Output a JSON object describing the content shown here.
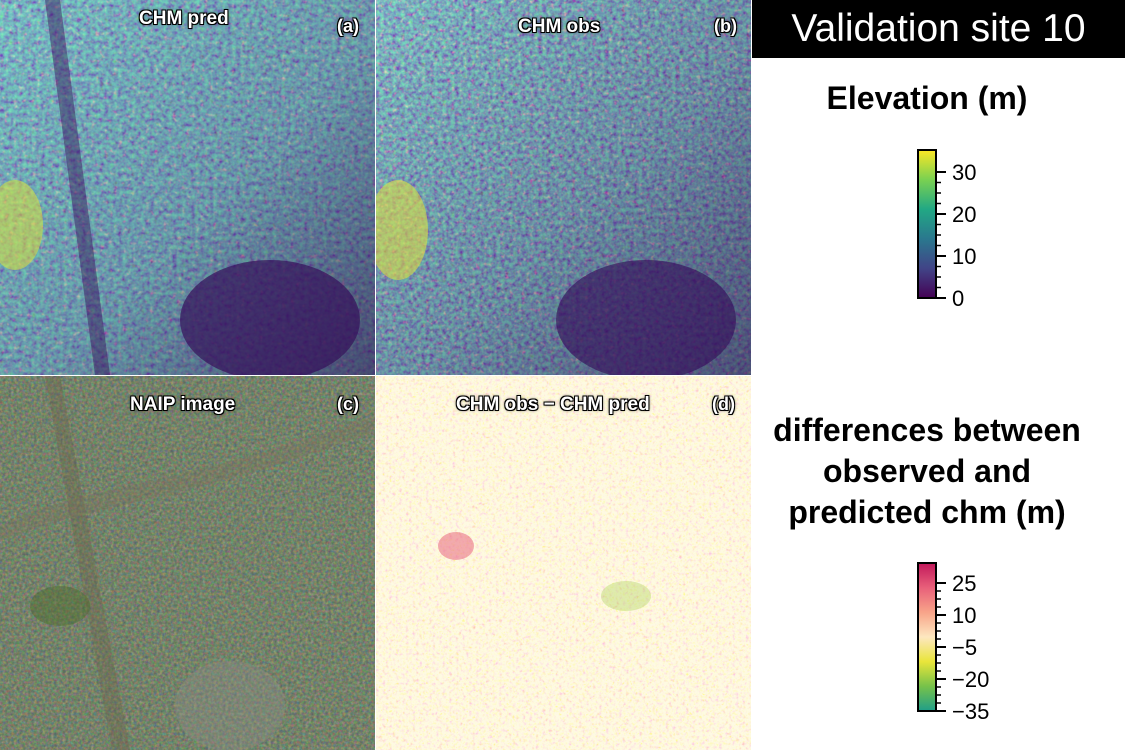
{
  "site_title": "Validation site  10",
  "panels": [
    {
      "id": "a",
      "title": "CHM pred",
      "letter": "(a)"
    },
    {
      "id": "b",
      "title": "CHM obs",
      "letter": "(b)"
    },
    {
      "id": "c",
      "title": "NAIP image",
      "letter": "(c)"
    },
    {
      "id": "d",
      "title": "CHM obs − CHM pred",
      "letter": "(d)"
    }
  ],
  "elevation_legend": {
    "title": "Elevation (m)",
    "ticks": [
      "30",
      "20",
      "10",
      "0"
    ],
    "colors": [
      "#fde725",
      "#7ad151",
      "#22a884",
      "#2a788e",
      "#414487",
      "#440154"
    ]
  },
  "difference_legend": {
    "title_lines": [
      "differences between",
      "observed and",
      "predicted chm (m)"
    ],
    "ticks": [
      "25",
      "10",
      "−5",
      "−20",
      "−35"
    ],
    "colors": [
      "#c2185b",
      "#e8607a",
      "#f8a489",
      "#fde7c0",
      "#e9e53a",
      "#77c24a",
      "#1f9e89"
    ]
  },
  "colors": {
    "chm_dark": "#3b0f5c",
    "chm_bright": "#fde725",
    "naip_forest": "#24311f",
    "diff_background": "#fdf4c4"
  }
}
